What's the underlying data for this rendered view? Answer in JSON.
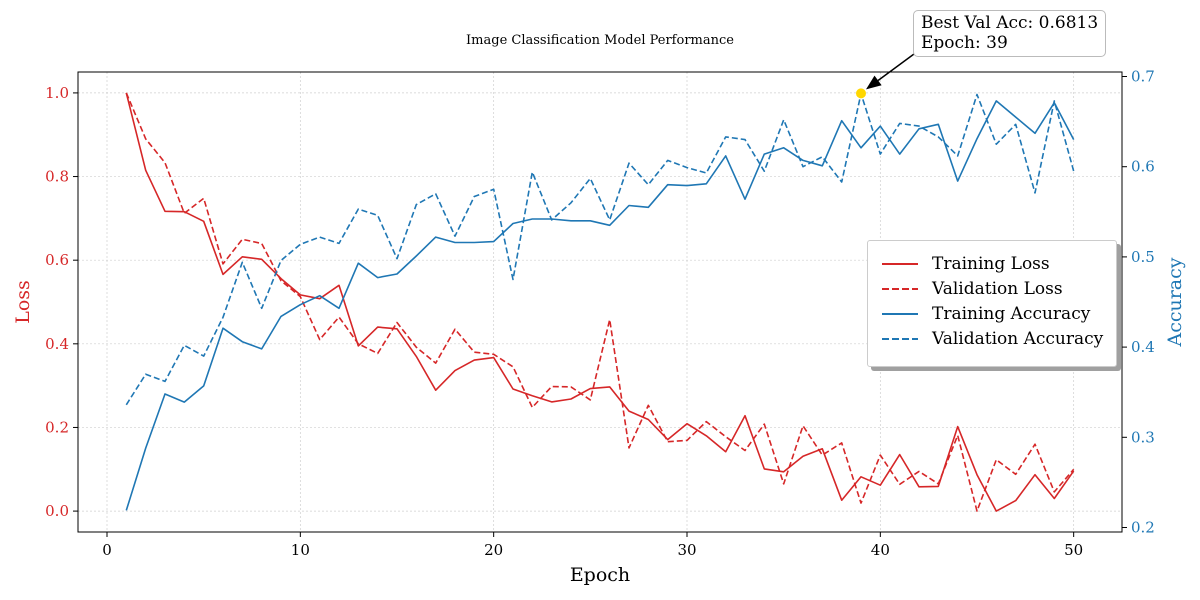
{
  "chart_data": {
    "type": "line",
    "title": "Image Classification Model Performance",
    "xlabel": "Epoch",
    "ylabel_left": "Loss",
    "ylabel_right": "Accuracy",
    "xlim": [
      -1.5,
      52.5
    ],
    "ylim_left": [
      -0.05,
      1.05
    ],
    "ylim_right": [
      0.195,
      0.705
    ],
    "x_ticks": [
      0,
      10,
      20,
      30,
      40,
      50
    ],
    "y_left_ticks": [
      "0.0",
      "0.2",
      "0.4",
      "0.6",
      "0.8",
      "1.0"
    ],
    "y_right_ticks": [
      "0.2",
      "0.3",
      "0.4",
      "0.5",
      "0.6",
      "0.7"
    ],
    "grid": true,
    "legend_position": "center-right",
    "colors": {
      "loss": "#d62728",
      "accuracy": "#1f77b4",
      "highlight": "#ffd700"
    },
    "x": [
      1,
      2,
      3,
      4,
      5,
      6,
      7,
      8,
      9,
      10,
      11,
      12,
      13,
      14,
      15,
      16,
      17,
      18,
      19,
      20,
      21,
      22,
      23,
      24,
      25,
      26,
      27,
      28,
      29,
      30,
      31,
      32,
      33,
      34,
      35,
      36,
      37,
      38,
      39,
      40,
      41,
      42,
      43,
      44,
      45,
      46,
      47,
      48,
      49,
      50
    ],
    "series": [
      {
        "name": "Training Loss",
        "axis": "left",
        "style": "solid",
        "color": "#d62728",
        "values": [
          1.0,
          0.815,
          0.717,
          0.716,
          0.693,
          0.566,
          0.608,
          0.602,
          0.556,
          0.517,
          0.508,
          0.54,
          0.395,
          0.44,
          0.436,
          0.37,
          0.289,
          0.336,
          0.361,
          0.367,
          0.292,
          0.276,
          0.261,
          0.268,
          0.293,
          0.297,
          0.239,
          0.219,
          0.171,
          0.209,
          0.18,
          0.142,
          0.228,
          0.101,
          0.094,
          0.131,
          0.149,
          0.026,
          0.082,
          0.062,
          0.135,
          0.058,
          0.059,
          0.202,
          0.087,
          0.0,
          0.025,
          0.087,
          0.03,
          0.096
        ]
      },
      {
        "name": "Validation Loss",
        "axis": "left",
        "style": "dashed",
        "color": "#d62728",
        "values": [
          1.0,
          0.89,
          0.833,
          0.712,
          0.748,
          0.591,
          0.65,
          0.64,
          0.551,
          0.513,
          0.41,
          0.464,
          0.4,
          0.377,
          0.451,
          0.392,
          0.354,
          0.435,
          0.38,
          0.375,
          0.345,
          0.248,
          0.298,
          0.297,
          0.266,
          0.458,
          0.151,
          0.253,
          0.166,
          0.169,
          0.214,
          0.178,
          0.145,
          0.208,
          0.065,
          0.204,
          0.134,
          0.163,
          0.019,
          0.134,
          0.064,
          0.095,
          0.065,
          0.181,
          0.0,
          0.123,
          0.088,
          0.16,
          0.046,
          0.1
        ]
      },
      {
        "name": "Training Accuracy",
        "axis": "right",
        "style": "solid",
        "color": "#1f77b4",
        "values": [
          0.219,
          0.288,
          0.348,
          0.339,
          0.357,
          0.421,
          0.406,
          0.398,
          0.434,
          0.447,
          0.457,
          0.443,
          0.493,
          0.477,
          0.481,
          0.501,
          0.522,
          0.516,
          0.516,
          0.517,
          0.537,
          0.542,
          0.542,
          0.54,
          0.54,
          0.535,
          0.557,
          0.555,
          0.58,
          0.579,
          0.581,
          0.612,
          0.564,
          0.614,
          0.621,
          0.607,
          0.601,
          0.651,
          0.621,
          0.645,
          0.614,
          0.642,
          0.647,
          0.584,
          0.631,
          0.673,
          0.655,
          0.637,
          0.671,
          0.63
        ]
      },
      {
        "name": "Validation Accuracy",
        "axis": "right",
        "style": "dashed",
        "color": "#1f77b4",
        "values": [
          0.336,
          0.37,
          0.362,
          0.402,
          0.39,
          0.433,
          0.494,
          0.443,
          0.496,
          0.514,
          0.522,
          0.515,
          0.553,
          0.546,
          0.498,
          0.558,
          0.57,
          0.523,
          0.567,
          0.575,
          0.475,
          0.594,
          0.541,
          0.56,
          0.587,
          0.541,
          0.604,
          0.58,
          0.607,
          0.599,
          0.593,
          0.633,
          0.63,
          0.595,
          0.652,
          0.6,
          0.611,
          0.583,
          0.681,
          0.614,
          0.648,
          0.645,
          0.633,
          0.612,
          0.68,
          0.625,
          0.647,
          0.571,
          0.673,
          0.595
        ]
      }
    ],
    "annotation": {
      "text_line1": "Best Val Acc: 0.6813",
      "text_line2": "Epoch: 39",
      "x": 39,
      "y": 0.6813,
      "axis": "right"
    }
  }
}
